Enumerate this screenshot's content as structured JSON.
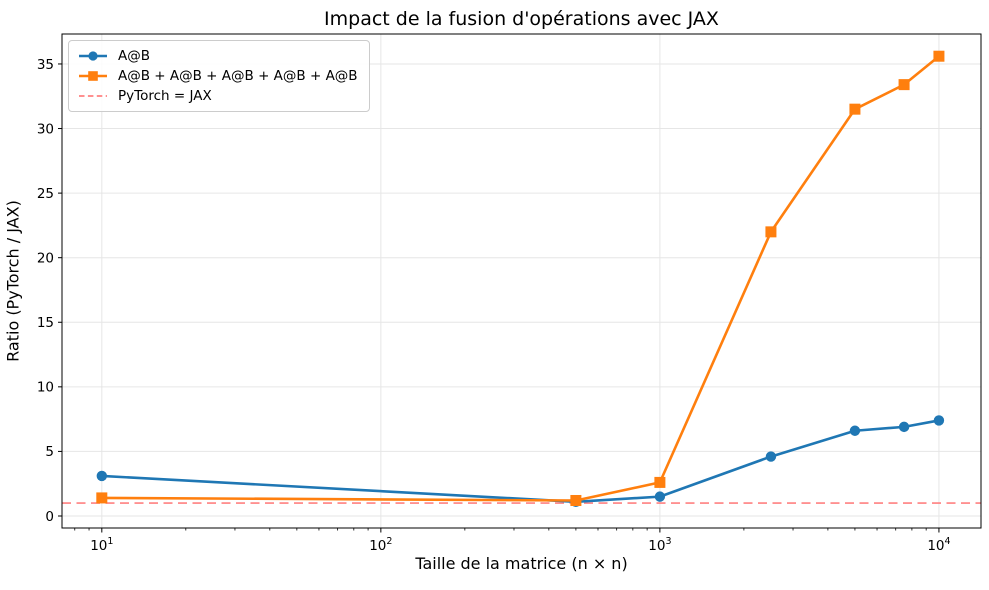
{
  "chart_data": {
    "type": "line",
    "title": "Impact de la fusion d'opérations avec JAX",
    "xlabel": "Taille de la matrice (n × n)",
    "ylabel": "Ratio (PyTorch / JAX)",
    "x_scale": "log",
    "x": [
      10,
      500,
      1000,
      2500,
      5000,
      7500,
      10000
    ],
    "series": [
      {
        "name": "A@B",
        "color": "#1f77b4",
        "marker": "circle",
        "values": [
          3.1,
          1.1,
          1.5,
          4.6,
          6.6,
          6.9,
          7.4
        ]
      },
      {
        "name": "A@B + A@B + A@B + A@B + A@B",
        "color": "#ff7f0e",
        "marker": "square",
        "values": [
          1.4,
          1.2,
          2.6,
          22.0,
          31.5,
          33.4,
          35.6
        ]
      }
    ],
    "reference_line": {
      "label": "PyTorch = JAX",
      "y": 1,
      "color": "#ff8080",
      "style": "dashed"
    },
    "x_ticks": [
      {
        "value": 10,
        "base": "10",
        "exp": "1"
      },
      {
        "value": 100,
        "base": "10",
        "exp": "2"
      },
      {
        "value": 1000,
        "base": "10",
        "exp": "3"
      },
      {
        "value": 10000,
        "base": "10",
        "exp": "4"
      }
    ],
    "y_ticks": [
      0,
      5,
      10,
      15,
      20,
      25,
      30,
      35
    ],
    "xlim": [
      7.2,
      14150
    ],
    "ylim": [
      -0.93,
      37.32
    ],
    "grid": true,
    "grid_color": "#e6e6e6",
    "spine_color": "#000000",
    "legend_position": "upper left"
  }
}
